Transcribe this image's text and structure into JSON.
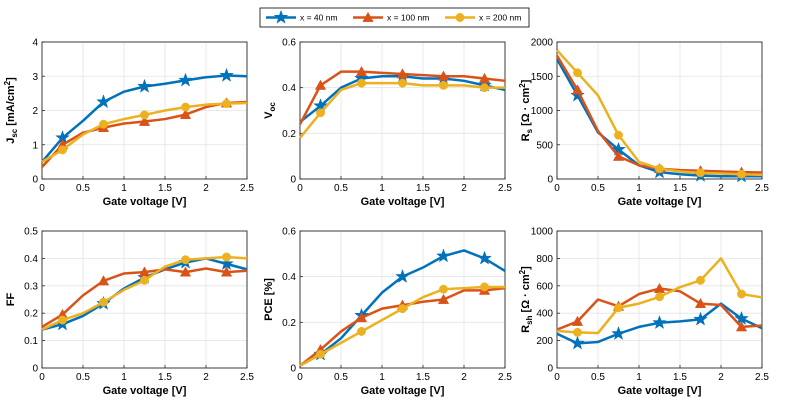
{
  "legend": {
    "entries": [
      {
        "label": "x = 40 nm",
        "color": "#0072BD",
        "marker": "star"
      },
      {
        "label": "x = 100 nm",
        "color": "#D95319",
        "marker": "triangle"
      },
      {
        "label": "x = 200 nm",
        "color": "#EDB120",
        "marker": "circle"
      }
    ]
  },
  "chart_data": [
    {
      "type": "line",
      "id": "jsc",
      "ylabel": {
        "main": "J",
        "sub": "sc",
        "tail": " [mA/cm",
        "sup": "2",
        "end": "]"
      },
      "xlabel": "Gate voltage [V]",
      "xlim": [
        0,
        2.5
      ],
      "ylim": [
        0,
        4
      ],
      "xticks": [
        0,
        0.5,
        1,
        1.5,
        2,
        2.5
      ],
      "xtick_labels": [
        "0",
        "0.5",
        "1",
        "1.5",
        "2",
        "2.5"
      ],
      "yticks": [
        0,
        1,
        2,
        3,
        4
      ],
      "ytick_labels": [
        "0",
        "1",
        "2",
        "3",
        "4"
      ],
      "series": [
        {
          "name": "x = 40 nm",
          "x": [
            0,
            0.25,
            0.5,
            0.75,
            1,
            1.25,
            1.5,
            1.75,
            2,
            2.25,
            2.5
          ],
          "y": [
            0.5,
            1.2,
            1.7,
            2.25,
            2.55,
            2.7,
            2.78,
            2.88,
            2.97,
            3.02,
            3.0
          ]
        },
        {
          "name": "x = 100 nm",
          "x": [
            0,
            0.25,
            0.5,
            0.75,
            1,
            1.25,
            1.5,
            1.75,
            2,
            2.25,
            2.5
          ],
          "y": [
            0.35,
            1.0,
            1.35,
            1.5,
            1.62,
            1.68,
            1.75,
            1.88,
            2.1,
            2.22,
            2.25
          ]
        },
        {
          "name": "x = 200 nm",
          "x": [
            0,
            0.25,
            0.5,
            0.75,
            1,
            1.25,
            1.5,
            1.75,
            2,
            2.25,
            2.5
          ],
          "y": [
            0.5,
            0.85,
            1.3,
            1.6,
            1.75,
            1.87,
            2.0,
            2.1,
            2.17,
            2.2,
            2.22
          ]
        }
      ]
    },
    {
      "type": "line",
      "id": "voc",
      "ylabel": {
        "main": "V",
        "sub": "oc",
        "tail": "",
        "sup": "",
        "end": ""
      },
      "xlabel": "Gate voltage [V]",
      "xlim": [
        0,
        2.5
      ],
      "ylim": [
        0,
        0.6
      ],
      "xticks": [
        0,
        0.5,
        1,
        1.5,
        2,
        2.5
      ],
      "xtick_labels": [
        "0",
        "0.5",
        "1",
        "1.5",
        "2",
        "2.5"
      ],
      "yticks": [
        0,
        0.2,
        0.4,
        0.6
      ],
      "ytick_labels": [
        "0",
        "0.2",
        "0.4",
        "0.6"
      ],
      "series": [
        {
          "name": "x = 40 nm",
          "x": [
            0,
            0.25,
            0.5,
            0.75,
            1,
            1.25,
            1.5,
            1.75,
            2,
            2.25,
            2.5
          ],
          "y": [
            0.25,
            0.32,
            0.4,
            0.44,
            0.45,
            0.45,
            0.44,
            0.44,
            0.43,
            0.41,
            0.39
          ]
        },
        {
          "name": "x = 100 nm",
          "x": [
            0,
            0.25,
            0.5,
            0.75,
            1,
            1.25,
            1.5,
            1.75,
            2,
            2.25,
            2.5
          ],
          "y": [
            0.24,
            0.41,
            0.47,
            0.47,
            0.465,
            0.46,
            0.455,
            0.45,
            0.45,
            0.44,
            0.43
          ]
        },
        {
          "name": "x = 200 nm",
          "x": [
            0,
            0.25,
            0.5,
            0.75,
            1,
            1.25,
            1.5,
            1.75,
            2,
            2.25,
            2.5
          ],
          "y": [
            0.18,
            0.29,
            0.39,
            0.42,
            0.42,
            0.42,
            0.41,
            0.41,
            0.41,
            0.4,
            0.4
          ]
        }
      ]
    },
    {
      "type": "line",
      "id": "rs",
      "ylabel": {
        "main": "R",
        "sub": "s",
        "tail": " [Ω · cm",
        "sup": "2",
        "end": "]"
      },
      "xlabel": "Gate voltage [V]",
      "xlim": [
        0,
        2.5
      ],
      "ylim": [
        0,
        2000
      ],
      "xticks": [
        0,
        0.5,
        1,
        1.5,
        2,
        2.5
      ],
      "xtick_labels": [
        "0",
        "0.5",
        "1",
        "1.5",
        "2",
        "2.5"
      ],
      "yticks": [
        0,
        500,
        1000,
        1500,
        2000
      ],
      "ytick_labels": [
        "0",
        "500",
        "1000",
        "1500",
        "2000"
      ],
      "series": [
        {
          "name": "x = 40 nm",
          "x": [
            0,
            0.25,
            0.5,
            0.75,
            1,
            1.25,
            1.5,
            1.75,
            2,
            2.25,
            2.5
          ],
          "y": [
            1750,
            1220,
            680,
            430,
            200,
            100,
            70,
            50,
            40,
            40,
            40
          ]
        },
        {
          "name": "x = 100 nm",
          "x": [
            0,
            0.25,
            0.5,
            0.75,
            1,
            1.25,
            1.5,
            1.75,
            2,
            2.25,
            2.5
          ],
          "y": [
            1800,
            1300,
            700,
            330,
            200,
            150,
            130,
            120,
            110,
            100,
            95
          ]
        },
        {
          "name": "x = 200 nm",
          "x": [
            0,
            0.25,
            0.5,
            0.75,
            1,
            1.25,
            1.5,
            1.75,
            2,
            2.25,
            2.5
          ],
          "y": [
            1880,
            1550,
            1220,
            640,
            250,
            150,
            110,
            90,
            80,
            70,
            60
          ]
        }
      ]
    },
    {
      "type": "line",
      "id": "ff",
      "ylabel": {
        "main": "FF",
        "sub": "",
        "tail": "",
        "sup": "",
        "end": ""
      },
      "xlabel": "Gate voltage [V]",
      "xlim": [
        0,
        2.5
      ],
      "ylim": [
        0,
        0.5
      ],
      "xticks": [
        0,
        0.5,
        1,
        1.5,
        2,
        2.5
      ],
      "xtick_labels": [
        "0",
        "0.5",
        "1",
        "1.5",
        "2",
        "2.5"
      ],
      "yticks": [
        0,
        0.1,
        0.2,
        0.3,
        0.4,
        0.5
      ],
      "ytick_labels": [
        "0",
        "0.1",
        "0.2",
        "0.3",
        "0.4",
        "0.5"
      ],
      "series": [
        {
          "name": "x = 40 nm",
          "x": [
            0,
            0.25,
            0.5,
            0.75,
            1,
            1.25,
            1.5,
            1.75,
            2,
            2.25,
            2.5
          ],
          "y": [
            0.14,
            0.16,
            0.19,
            0.235,
            0.29,
            0.33,
            0.36,
            0.385,
            0.4,
            0.38,
            0.36
          ]
        },
        {
          "name": "x = 100 nm",
          "x": [
            0,
            0.25,
            0.5,
            0.75,
            1,
            1.25,
            1.5,
            1.75,
            2,
            2.25,
            2.5
          ],
          "y": [
            0.15,
            0.195,
            0.265,
            0.318,
            0.345,
            0.35,
            0.36,
            0.35,
            0.363,
            0.35,
            0.355
          ]
        },
        {
          "name": "x = 200 nm",
          "x": [
            0,
            0.25,
            0.5,
            0.75,
            1,
            1.25,
            1.5,
            1.75,
            2,
            2.25,
            2.5
          ],
          "y": [
            0.14,
            0.175,
            0.2,
            0.24,
            0.285,
            0.32,
            0.37,
            0.395,
            0.4,
            0.405,
            0.4
          ]
        }
      ]
    },
    {
      "type": "line",
      "id": "pce",
      "ylabel": {
        "main": "PCE [%]",
        "sub": "",
        "tail": "",
        "sup": "",
        "end": ""
      },
      "xlabel": "Gate voltage [V]",
      "xlim": [
        0,
        2.5
      ],
      "ylim": [
        0,
        0.6
      ],
      "xticks": [
        0,
        0.5,
        1,
        1.5,
        2,
        2.5
      ],
      "xtick_labels": [
        "0",
        "0.5",
        "1",
        "1.5",
        "2",
        "2.5"
      ],
      "yticks": [
        0,
        0.2,
        0.4,
        0.6
      ],
      "ytick_labels": [
        "0",
        "0.2",
        "0.4",
        "0.6"
      ],
      "series": [
        {
          "name": "x = 40 nm",
          "x": [
            0,
            0.25,
            0.5,
            0.75,
            1,
            1.25,
            1.5,
            1.75,
            2,
            2.25,
            2.5
          ],
          "y": [
            0.01,
            0.06,
            0.13,
            0.23,
            0.33,
            0.4,
            0.44,
            0.49,
            0.515,
            0.48,
            0.425
          ]
        },
        {
          "name": "x = 100 nm",
          "x": [
            0,
            0.25,
            0.5,
            0.75,
            1,
            1.25,
            1.5,
            1.75,
            2,
            2.25,
            2.5
          ],
          "y": [
            0.01,
            0.08,
            0.16,
            0.22,
            0.26,
            0.275,
            0.29,
            0.3,
            0.34,
            0.34,
            0.35
          ]
        },
        {
          "name": "x = 200 nm",
          "x": [
            0,
            0.25,
            0.5,
            0.75,
            1,
            1.25,
            1.5,
            1.75,
            2,
            2.25,
            2.5
          ],
          "y": [
            0.01,
            0.06,
            0.11,
            0.16,
            0.21,
            0.26,
            0.31,
            0.345,
            0.35,
            0.355,
            0.355
          ]
        }
      ]
    },
    {
      "type": "line",
      "id": "rsh",
      "ylabel": {
        "main": "R",
        "sub": "sh",
        "tail": " [Ω · cm",
        "sup": "2",
        "end": "]"
      },
      "xlabel": "Gate voltage [V]",
      "xlim": [
        0,
        2.5
      ],
      "ylim": [
        0,
        1000
      ],
      "xticks": [
        0,
        0.5,
        1,
        1.5,
        2,
        2.5
      ],
      "xtick_labels": [
        "0",
        "0.5",
        "1",
        "1.5",
        "2",
        "2.5"
      ],
      "yticks": [
        0,
        200,
        400,
        600,
        800,
        1000
      ],
      "ytick_labels": [
        "0",
        "200",
        "400",
        "600",
        "800",
        "1000"
      ],
      "series": [
        {
          "name": "x = 40 nm",
          "x": [
            0,
            0.25,
            0.5,
            0.75,
            1,
            1.25,
            1.5,
            1.75,
            2,
            2.25,
            2.5
          ],
          "y": [
            250,
            180,
            190,
            250,
            300,
            330,
            340,
            355,
            470,
            360,
            290
          ]
        },
        {
          "name": "x = 100 nm",
          "x": [
            0,
            0.25,
            0.5,
            0.75,
            1,
            1.25,
            1.5,
            1.75,
            2,
            2.25,
            2.5
          ],
          "y": [
            280,
            340,
            500,
            450,
            540,
            580,
            560,
            470,
            460,
            300,
            310
          ]
        },
        {
          "name": "x = 200 nm",
          "x": [
            0,
            0.25,
            0.5,
            0.75,
            1,
            1.25,
            1.5,
            1.75,
            2,
            2.25,
            2.5
          ],
          "y": [
            270,
            260,
            255,
            440,
            470,
            520,
            590,
            640,
            800,
            540,
            515
          ]
        }
      ]
    }
  ]
}
